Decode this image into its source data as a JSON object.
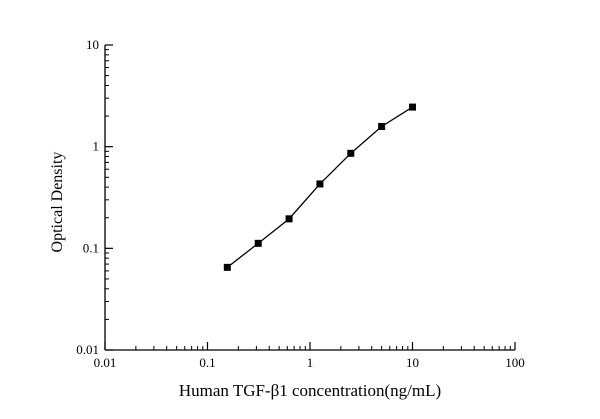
{
  "chart_data": {
    "type": "line",
    "subtype": "log-log standard curve with square markers",
    "title": "",
    "xlabel": "Human TGF-β1 concentration(ng/mL)",
    "ylabel": "Optical Density",
    "x_scale": "log",
    "y_scale": "log",
    "xlim": [
      0.01,
      100
    ],
    "ylim": [
      0.01,
      10
    ],
    "x_ticks": [
      "0.01",
      "0.1",
      "1",
      "10",
      "100"
    ],
    "y_ticks": [
      "0.01",
      "0.1",
      "1",
      "10"
    ],
    "grid": false,
    "legend": "none",
    "marker": "filled-square",
    "marker_color": "#000000",
    "line_color": "#000000",
    "points": [
      {
        "x": 0.156,
        "y": 0.065
      },
      {
        "x": 0.3125,
        "y": 0.112
      },
      {
        "x": 0.625,
        "y": 0.195
      },
      {
        "x": 1.25,
        "y": 0.43
      },
      {
        "x": 2.5,
        "y": 0.86
      },
      {
        "x": 5,
        "y": 1.58
      },
      {
        "x": 10,
        "y": 2.45
      }
    ]
  }
}
